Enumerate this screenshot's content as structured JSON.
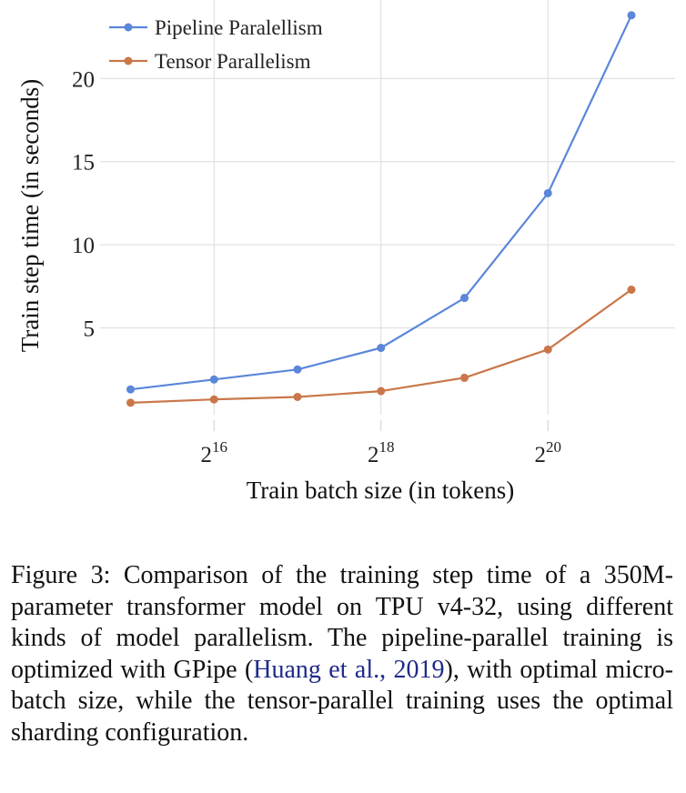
{
  "chart_data": {
    "type": "line",
    "xlabel": "Train batch size (in tokens)",
    "ylabel": "Train step time (in seconds)",
    "x_scale": "log2",
    "xlim": [
      32768,
      2097152
    ],
    "ylim": [
      0,
      24.5
    ],
    "x_ticks": [
      {
        "value": 65536,
        "base": "2",
        "exp": "16"
      },
      {
        "value": 262144,
        "base": "2",
        "exp": "18"
      },
      {
        "value": 1048576,
        "base": "2",
        "exp": "20"
      }
    ],
    "y_ticks": [
      5,
      10,
      15,
      20
    ],
    "grid": true,
    "legend_position": "top-left",
    "x": [
      32768,
      65536,
      131072,
      262144,
      524288,
      1048576,
      2097152
    ],
    "series": [
      {
        "name": "Pipeline Paralellism",
        "color": "#5b86d9",
        "values": [
          1.3,
          1.9,
          2.5,
          3.8,
          6.8,
          13.1,
          23.8
        ]
      },
      {
        "name": "Tensor Parallelism",
        "color": "#c9774a",
        "values": [
          0.5,
          0.7,
          0.85,
          1.2,
          2.0,
          3.7,
          7.3
        ]
      }
    ]
  },
  "caption": {
    "label": "Figure 3:",
    "text_before_citation": "Comparison of the training step time of a 350M-parameter transformer model on TPU v4-32, using different kinds of model parallelism. The pipeline-parallel training is optimized with GPipe (",
    "citation": "Huang et al., 2019",
    "text_after_citation": "), with optimal micro-batch size, while the tensor-parallel training uses the optimal sharding configuration."
  }
}
